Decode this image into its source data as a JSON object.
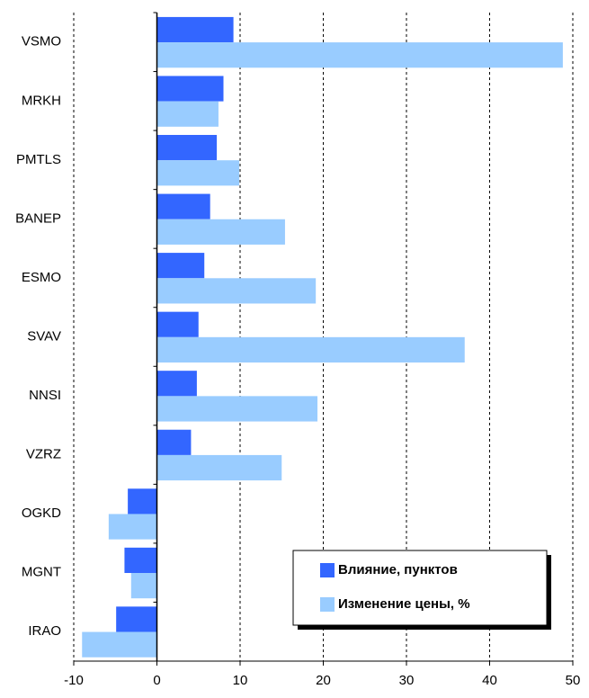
{
  "chart_data": {
    "type": "bar",
    "orientation": "horizontal",
    "categories": [
      "VSMO",
      "MRKH",
      "PMTLS",
      "BANEP",
      "ESMO",
      "SVAV",
      "NNSI",
      "VZRZ",
      "OGKD",
      "MGNT",
      "IRAO"
    ],
    "series": [
      {
        "name": "Влияние, пунктов",
        "color": "#3366ff",
        "values": [
          9.2,
          8.0,
          7.2,
          6.4,
          5.7,
          5.0,
          4.8,
          4.1,
          -3.5,
          -3.9,
          -4.9
        ]
      },
      {
        "name": "Изменение цены, %",
        "color": "#99ccff",
        "values": [
          48.8,
          7.4,
          9.9,
          15.4,
          19.1,
          37.0,
          19.3,
          15.0,
          -5.8,
          -3.1,
          -9.0
        ]
      }
    ],
    "xlim": [
      -10,
      50
    ],
    "xticks": [
      -10,
      0,
      10,
      20,
      30,
      40,
      50
    ],
    "grid": true,
    "legend": "lower right"
  }
}
